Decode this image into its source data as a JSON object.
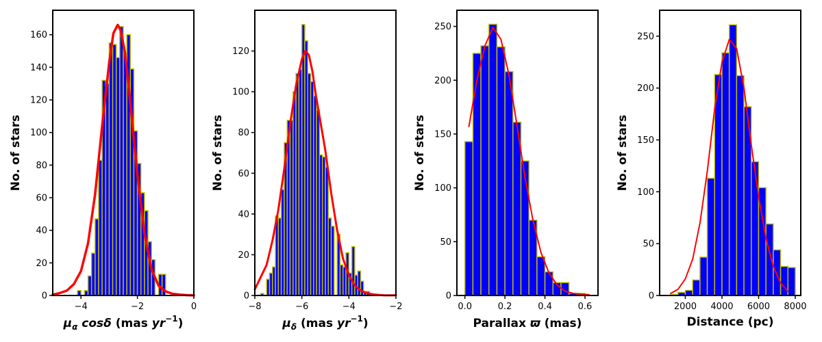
{
  "chart_data": [
    {
      "type": "bar",
      "id": "pmra",
      "xlabel_parts": [
        {
          "t": "μ",
          "style": "italic"
        },
        {
          "t": "α",
          "style": "italic",
          "sub": true
        },
        {
          "t": " cosδ",
          "style": "italic"
        },
        {
          "t": " (mas ",
          "style": "normal"
        },
        {
          "t": "yr",
          "style": "italic"
        },
        {
          "t": "−1",
          "style": "normal",
          "sup": true
        },
        {
          "t": ")",
          "style": "normal"
        }
      ],
      "ylabel": "No. of stars",
      "xlim": [
        -5,
        0
      ],
      "ylim": [
        0,
        175
      ],
      "xticks": [
        -4,
        -2,
        0
      ],
      "xtick_labels": [
        "−4",
        "−2",
        "0"
      ],
      "yticks": [
        0,
        20,
        40,
        60,
        80,
        100,
        120,
        140,
        160
      ],
      "bin_width": 0.125,
      "bars": [
        {
          "x": -4.125,
          "y": 3
        },
        {
          "x": -3.875,
          "y": 3
        },
        {
          "x": -3.75,
          "y": 12
        },
        {
          "x": -3.625,
          "y": 26
        },
        {
          "x": -3.5,
          "y": 47
        },
        {
          "x": -3.375,
          "y": 83
        },
        {
          "x": -3.25,
          "y": 132
        },
        {
          "x": -3.125,
          "y": 130
        },
        {
          "x": -3.0,
          "y": 155
        },
        {
          "x": -2.875,
          "y": 154
        },
        {
          "x": -2.75,
          "y": 146
        },
        {
          "x": -2.625,
          "y": 165
        },
        {
          "x": -2.5,
          "y": 149
        },
        {
          "x": -2.375,
          "y": 160
        },
        {
          "x": -2.25,
          "y": 139
        },
        {
          "x": -2.125,
          "y": 101
        },
        {
          "x": -2.0,
          "y": 81
        },
        {
          "x": -1.875,
          "y": 63
        },
        {
          "x": -1.75,
          "y": 52
        },
        {
          "x": -1.625,
          "y": 33
        },
        {
          "x": -1.5,
          "y": 22
        },
        {
          "x": -1.25,
          "y": 13
        },
        {
          "x": -1.125,
          "y": 13
        }
      ],
      "fit": {
        "x": [
          -5.0,
          -4.75,
          -4.5,
          -4.25,
          -4.0,
          -3.75,
          -3.5,
          -3.25,
          -3.0,
          -2.85,
          -2.7,
          -2.6,
          -2.45,
          -2.3,
          -2.15,
          -2.0,
          -1.75,
          -1.5,
          -1.25,
          -1.0,
          -0.75,
          -0.5,
          -0.25,
          0.0
        ],
        "y": [
          0.5,
          1.5,
          3,
          7,
          15,
          32,
          62,
          104,
          143,
          161,
          166,
          163,
          150,
          127,
          100,
          74,
          38,
          16,
          6,
          2.5,
          1,
          0.5,
          0.2,
          0.1
        ]
      }
    },
    {
      "type": "bar",
      "id": "pmdec",
      "xlabel_parts": [
        {
          "t": "μ",
          "style": "italic"
        },
        {
          "t": "δ",
          "style": "italic",
          "sub": true
        },
        {
          "t": "  (mas ",
          "style": "normal"
        },
        {
          "t": "yr",
          "style": "italic"
        },
        {
          "t": "−1",
          "style": "normal",
          "sup": true
        },
        {
          "t": ")",
          "style": "normal"
        }
      ],
      "ylabel": "No. of stars",
      "xlim": [
        -8,
        -2
      ],
      "ylim": [
        0,
        140
      ],
      "xticks": [
        -8,
        -6,
        -4,
        -2
      ],
      "xtick_labels": [
        "−8",
        "−6",
        "−4",
        "−2"
      ],
      "yticks": [
        0,
        20,
        40,
        60,
        80,
        100,
        120
      ],
      "bin_width": 0.125,
      "bars": [
        {
          "x": -7.75,
          "y": 1
        },
        {
          "x": -7.5,
          "y": 8
        },
        {
          "x": -7.375,
          "y": 11
        },
        {
          "x": -7.25,
          "y": 14
        },
        {
          "x": -7.125,
          "y": 39
        },
        {
          "x": -7.0,
          "y": 38
        },
        {
          "x": -6.875,
          "y": 52
        },
        {
          "x": -6.75,
          "y": 75
        },
        {
          "x": -6.625,
          "y": 86
        },
        {
          "x": -6.5,
          "y": 86
        },
        {
          "x": -6.375,
          "y": 100
        },
        {
          "x": -6.25,
          "y": 109
        },
        {
          "x": -6.125,
          "y": 111
        },
        {
          "x": -6.0,
          "y": 133
        },
        {
          "x": -5.875,
          "y": 125
        },
        {
          "x": -5.75,
          "y": 109
        },
        {
          "x": -5.625,
          "y": 105
        },
        {
          "x": -5.5,
          "y": 98
        },
        {
          "x": -5.375,
          "y": 91
        },
        {
          "x": -5.25,
          "y": 69
        },
        {
          "x": -5.125,
          "y": 68
        },
        {
          "x": -5.0,
          "y": 63
        },
        {
          "x": -4.875,
          "y": 38
        },
        {
          "x": -4.75,
          "y": 34
        },
        {
          "x": -4.5,
          "y": 30
        },
        {
          "x": -4.375,
          "y": 15
        },
        {
          "x": -4.25,
          "y": 14
        },
        {
          "x": -4.125,
          "y": 21
        },
        {
          "x": -4.0,
          "y": 11
        },
        {
          "x": -3.875,
          "y": 24
        },
        {
          "x": -3.75,
          "y": 10
        },
        {
          "x": -3.625,
          "y": 12
        },
        {
          "x": -3.5,
          "y": 7
        },
        {
          "x": -3.375,
          "y": 2
        },
        {
          "x": -3.25,
          "y": 2
        }
      ],
      "fit": {
        "x": [
          -8.0,
          -7.75,
          -7.5,
          -7.25,
          -7.0,
          -6.75,
          -6.5,
          -6.25,
          -6.0,
          -5.85,
          -5.7,
          -5.55,
          -5.4,
          -5.25,
          -5.0,
          -4.75,
          -4.5,
          -4.25,
          -4.0,
          -3.75,
          -3.5,
          -3.25,
          -3.0,
          -2.75,
          -2.5,
          -2.0
        ],
        "y": [
          3,
          9,
          15,
          27,
          42,
          62,
          84,
          103,
          116,
          120,
          118,
          110,
          98,
          88,
          71,
          50,
          32,
          18,
          10,
          5,
          2.5,
          1.2,
          0.6,
          0.3,
          0.1,
          0.1
        ]
      }
    },
    {
      "type": "bar",
      "id": "parallax",
      "xlabel_parts": [
        {
          "t": "Parallax ",
          "style": "normal"
        },
        {
          "t": "ϖ",
          "style": "italic"
        },
        {
          "t": " (mas)",
          "style": "normal"
        }
      ],
      "ylabel": "No. of stars",
      "xlim": [
        -0.04,
        0.665
      ],
      "ylim": [
        0,
        265
      ],
      "xticks": [
        0.0,
        0.2,
        0.4,
        0.6
      ],
      "xtick_labels": [
        "0.0",
        "0.2",
        "0.4",
        "0.6"
      ],
      "yticks": [
        0,
        50,
        100,
        150,
        200,
        250
      ],
      "bin_width": 0.04,
      "bars": [
        {
          "x": 0.0,
          "y": 143
        },
        {
          "x": 0.04,
          "y": 225
        },
        {
          "x": 0.08,
          "y": 232
        },
        {
          "x": 0.12,
          "y": 252
        },
        {
          "x": 0.16,
          "y": 231
        },
        {
          "x": 0.2,
          "y": 208
        },
        {
          "x": 0.24,
          "y": 161
        },
        {
          "x": 0.28,
          "y": 125
        },
        {
          "x": 0.32,
          "y": 70
        },
        {
          "x": 0.36,
          "y": 36
        },
        {
          "x": 0.4,
          "y": 22
        },
        {
          "x": 0.44,
          "y": 12
        },
        {
          "x": 0.48,
          "y": 12
        },
        {
          "x": 0.52,
          "y": 2
        },
        {
          "x": 0.56,
          "y": 2
        }
      ],
      "fit": {
        "x": [
          0.02,
          0.06,
          0.1,
          0.14,
          0.18,
          0.22,
          0.26,
          0.3,
          0.34,
          0.38,
          0.42,
          0.46,
          0.5,
          0.54,
          0.58,
          0.62
        ],
        "y": [
          157,
          200,
          232,
          249,
          238,
          205,
          158,
          110,
          70,
          40,
          21,
          10,
          4,
          2,
          1.2,
          0.8
        ]
      }
    },
    {
      "type": "bar",
      "id": "distance",
      "xlabel_parts": [
        {
          "t": "Distance (pc)",
          "style": "normal"
        }
      ],
      "ylabel": "No. of stars",
      "xlim": [
        600,
        8300
      ],
      "ylim": [
        0,
        275
      ],
      "xticks": [
        2000,
        4000,
        6000,
        8000
      ],
      "xtick_labels": [
        "2000",
        "4000",
        "6000",
        "8000"
      ],
      "yticks": [
        0,
        50,
        100,
        150,
        200,
        250
      ],
      "bin_width": 400,
      "bars": [
        {
          "x": 1200,
          "y": 1
        },
        {
          "x": 1600,
          "y": 3
        },
        {
          "x": 2000,
          "y": 5
        },
        {
          "x": 2400,
          "y": 15
        },
        {
          "x": 2800,
          "y": 37
        },
        {
          "x": 3200,
          "y": 113
        },
        {
          "x": 3600,
          "y": 213
        },
        {
          "x": 4000,
          "y": 234
        },
        {
          "x": 4400,
          "y": 261
        },
        {
          "x": 4800,
          "y": 212
        },
        {
          "x": 5200,
          "y": 182
        },
        {
          "x": 5600,
          "y": 129
        },
        {
          "x": 6000,
          "y": 104
        },
        {
          "x": 6400,
          "y": 69
        },
        {
          "x": 6800,
          "y": 44
        },
        {
          "x": 7200,
          "y": 28
        },
        {
          "x": 7600,
          "y": 27
        }
      ],
      "fit": {
        "x": [
          1200,
          1600,
          2000,
          2400,
          2800,
          3200,
          3600,
          4000,
          4400,
          4800,
          5200,
          5600,
          6000,
          6400,
          6800,
          7200,
          7600
        ],
        "y": [
          2,
          6,
          16,
          35,
          70,
          120,
          180,
          225,
          247,
          238,
          200,
          145,
          95,
          55,
          28,
          12,
          4
        ]
      }
    }
  ]
}
